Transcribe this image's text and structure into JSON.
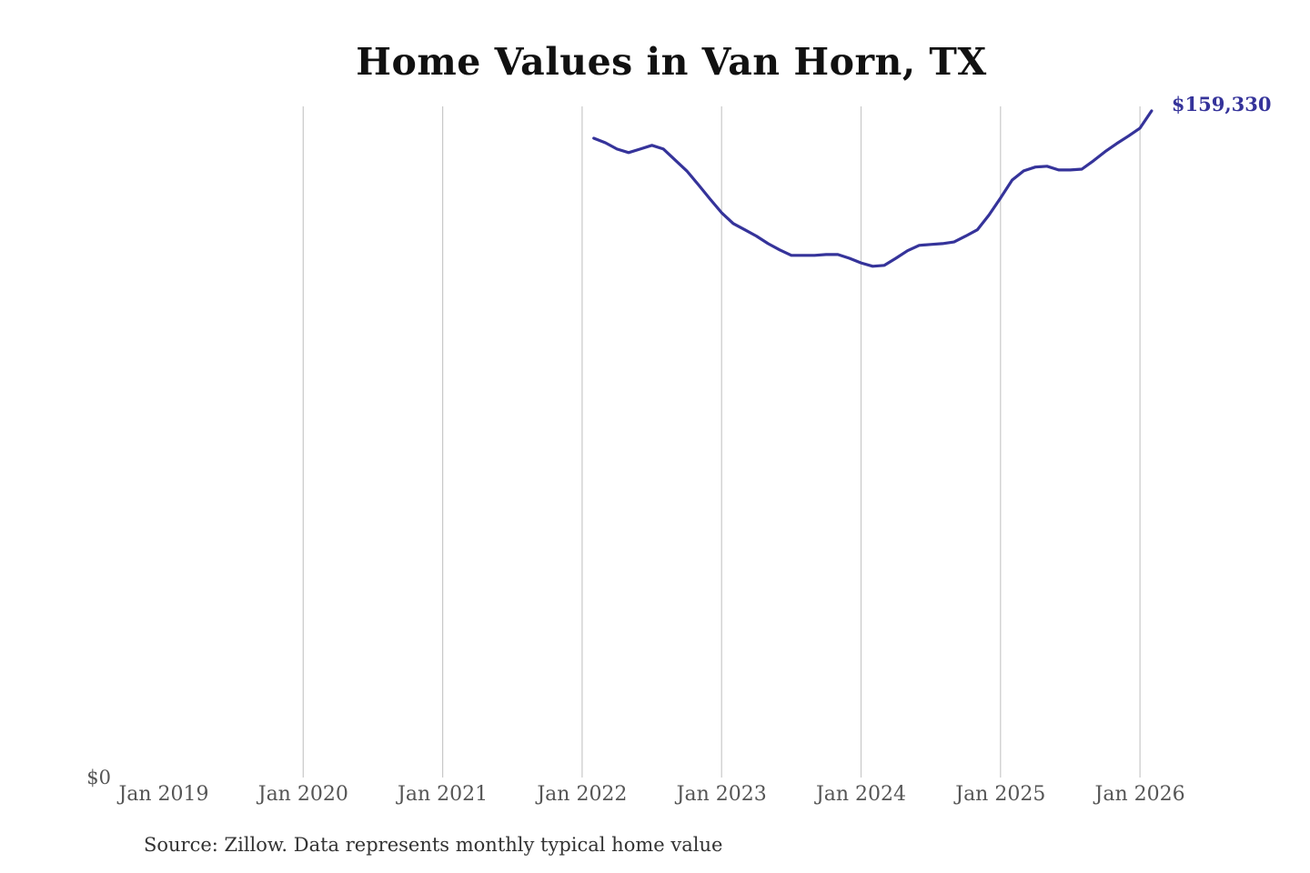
{
  "chart_data": {
    "type": "line",
    "title": "Home Values in Van Horn, TX",
    "source": "Source: Zillow. Data represents monthly typical home value",
    "xlabel": "",
    "ylabel": "",
    "x_ticks": [
      "Jan 2019",
      "Jan 2020",
      "Jan 2021",
      "Jan 2022",
      "Jan 2023",
      "Jan 2024",
      "Jan 2025",
      "Jan 2026"
    ],
    "x_range": [
      "2019-01",
      "2026-02"
    ],
    "y_ticks": [
      "$0"
    ],
    "ylim": [
      0,
      160400
    ],
    "grid": "vertical",
    "line_color": "#35339a",
    "end_label": "$159,330",
    "series": [
      {
        "name": "Typical home value",
        "dates": [
          "2022-02",
          "2022-03",
          "2022-04",
          "2022-05",
          "2022-06",
          "2022-07",
          "2022-08",
          "2022-09",
          "2022-10",
          "2022-11",
          "2022-12",
          "2023-01",
          "2023-02",
          "2023-03",
          "2023-04",
          "2023-05",
          "2023-06",
          "2023-07",
          "2023-08",
          "2023-09",
          "2023-10",
          "2023-11",
          "2023-12",
          "2024-01",
          "2024-02",
          "2024-03",
          "2024-04",
          "2024-05",
          "2024-06",
          "2024-07",
          "2024-08",
          "2024-09",
          "2024-10",
          "2024-11",
          "2024-12",
          "2025-01",
          "2025-02",
          "2025-03",
          "2025-04",
          "2025-05",
          "2025-06",
          "2025-07",
          "2025-08",
          "2025-09",
          "2025-10",
          "2025-11",
          "2025-12",
          "2026-01",
          "2026-02"
        ],
        "values": [
          152800,
          151700,
          150200,
          149350,
          150200,
          151100,
          150200,
          147600,
          145000,
          141700,
          138300,
          135000,
          132400,
          130900,
          129400,
          127600,
          126100,
          124800,
          124800,
          124800,
          125000,
          125000,
          124100,
          123000,
          122200,
          122400,
          124100,
          125900,
          127200,
          127400,
          127600,
          128000,
          129400,
          130900,
          134400,
          138500,
          142800,
          145000,
          145900,
          146100,
          145200,
          145200,
          145400,
          147400,
          149600,
          151500,
          153300,
          155200,
          159330
        ]
      }
    ]
  }
}
